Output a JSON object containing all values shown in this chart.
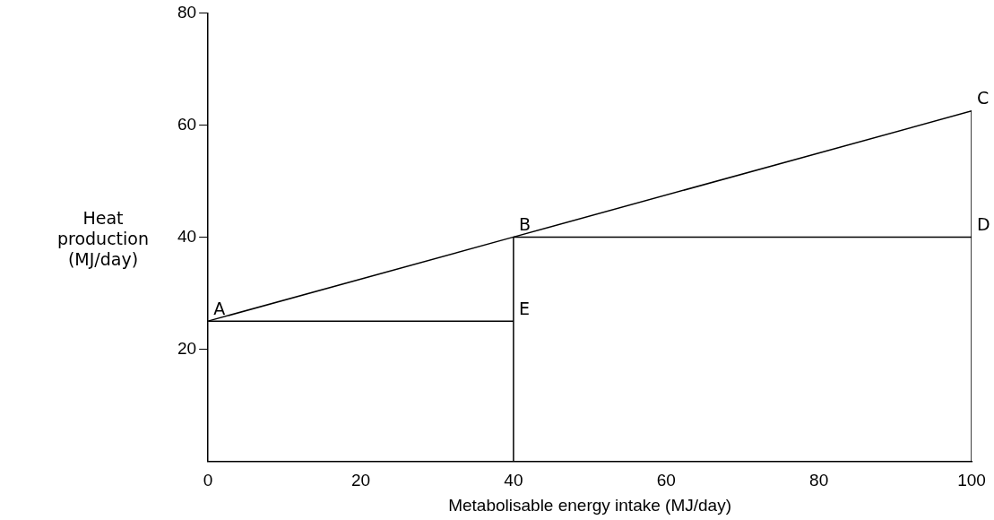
{
  "chart_data": {
    "type": "line",
    "xlabel": "Metabolisable energy intake (MJ/day)",
    "ylabel": "Heat\nproduction\n(MJ/day)",
    "series": [
      {
        "color": "#000000",
        "x": [
          0,
          40,
          100
        ],
        "values": [
          25,
          40,
          62.5
        ]
      },
      {
        "color": "#000000",
        "x": [
          0,
          40
        ],
        "values": [
          25,
          25
        ]
      },
      {
        "color": "#000000",
        "x": [
          40,
          40
        ],
        "values": [
          0,
          40
        ]
      },
      {
        "color": "#000000",
        "x": [
          40,
          100
        ],
        "values": [
          40,
          40
        ]
      },
      {
        "color": "#000000",
        "x": [
          100,
          100
        ],
        "values": [
          0,
          62.5
        ]
      }
    ],
    "annotations": [
      {
        "text": "A",
        "x": 0,
        "y": 25
      },
      {
        "text": "B",
        "x": 40,
        "y": 40
      },
      {
        "text": "C",
        "x": 100,
        "y": 62.5
      },
      {
        "text": "D",
        "x": 100,
        "y": 40
      },
      {
        "text": "E",
        "x": 40,
        "y": 25
      }
    ],
    "xlim": [
      0,
      100
    ],
    "xticks": [
      0,
      20,
      40,
      60,
      80,
      100
    ],
    "ylim": [
      0,
      80
    ],
    "yticks": [
      20,
      40,
      60,
      80
    ],
    "grid": false,
    "legend": false,
    "marker": "none",
    "line_style": "solid"
  }
}
